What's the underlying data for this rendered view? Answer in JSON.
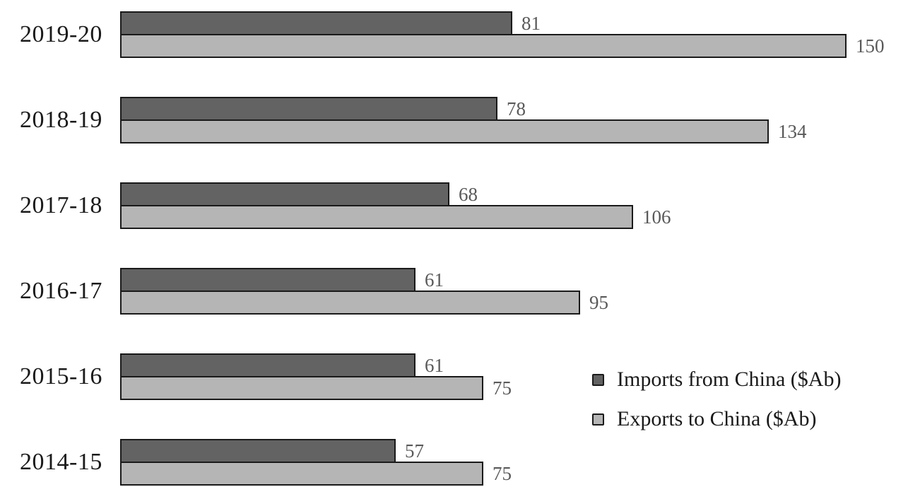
{
  "chart_data": {
    "type": "bar",
    "orientation": "horizontal",
    "title": "",
    "categories": [
      "2019-20",
      "2018-19",
      "2017-18",
      "2016-17",
      "2015-16",
      "2014-15"
    ],
    "series": [
      {
        "name": "Imports from China ($Ab)",
        "color": "#636363",
        "values": [
          81,
          78,
          68,
          61,
          61,
          57
        ]
      },
      {
        "name": "Exports to China ($Ab)",
        "color": "#b5b5b5",
        "values": [
          150,
          134,
          106,
          95,
          75,
          75
        ]
      }
    ],
    "xlim": [
      0,
      150
    ],
    "grid": false,
    "legend_position": "bottom-right",
    "value_labels": true
  },
  "colors": {
    "bar_border": "#1a1a1a",
    "value_label": "#595959",
    "category_label": "#1a1a1a"
  }
}
